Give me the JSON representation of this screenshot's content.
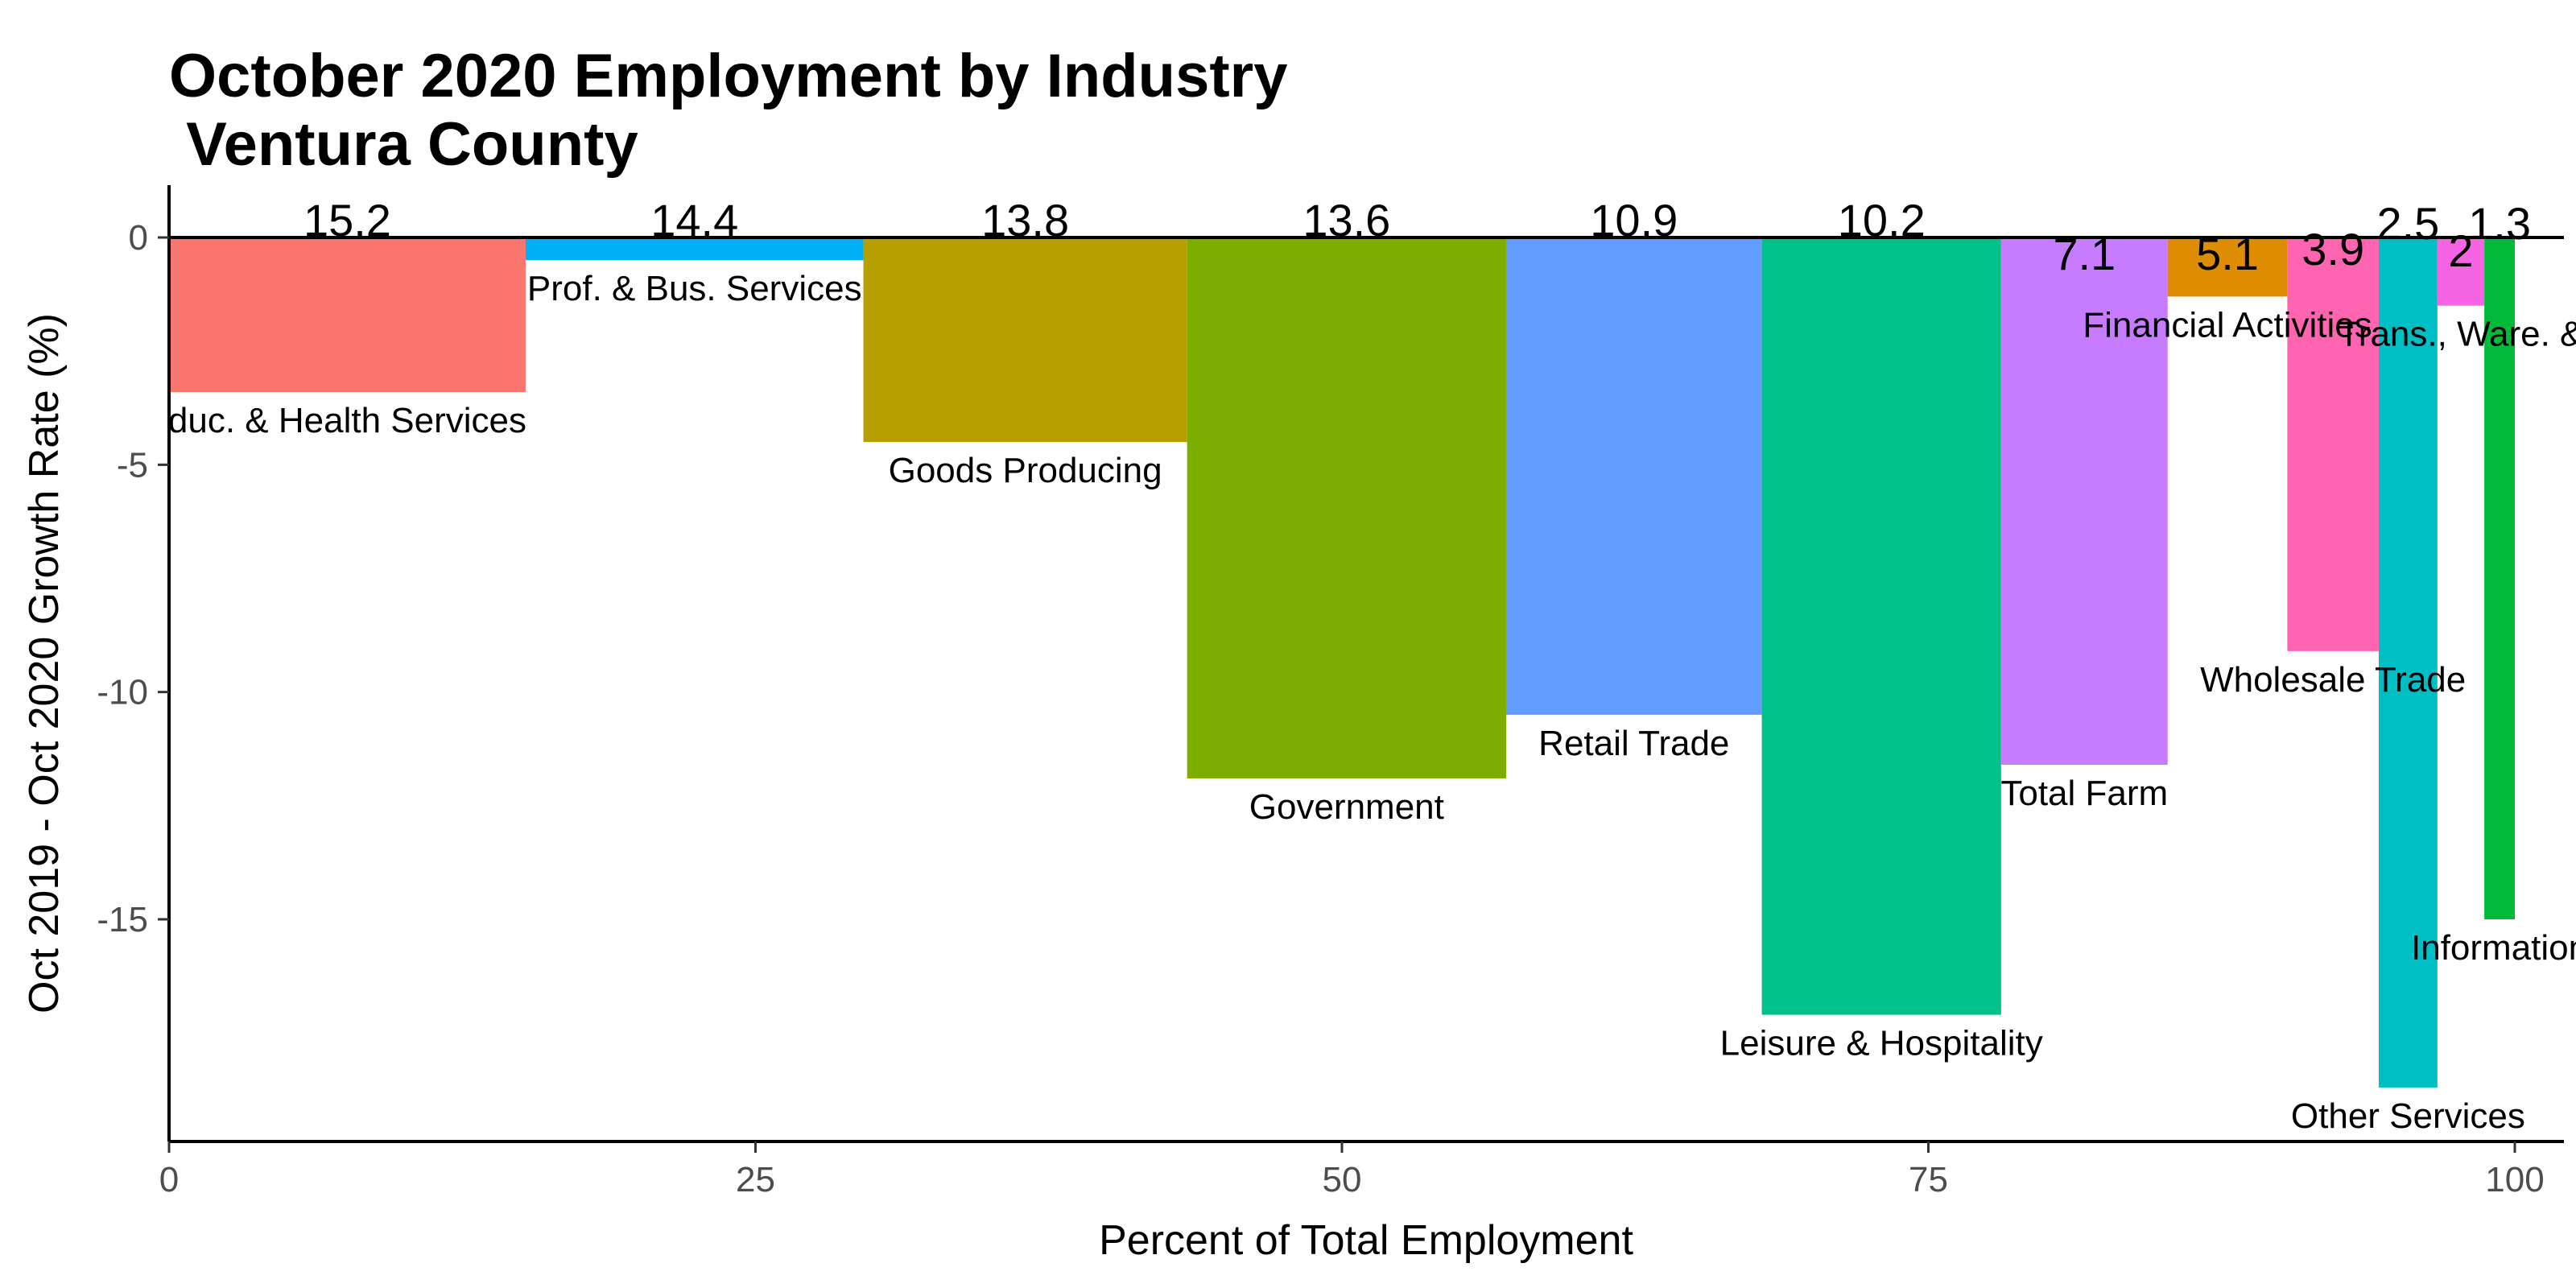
{
  "chart_data": {
    "type": "bar",
    "title_line1": "October 2020 Employment by Industry",
    "title_line2": " Ventura County",
    "xlabel": "Percent of Total Employment",
    "ylabel": "Oct 2019 - Oct 2020 Growth Rate (%)",
    "xlim": [
      0,
      100
    ],
    "ylim": [
      -19.9,
      1.2
    ],
    "x_ticks": [
      "0",
      "25",
      "50",
      "75",
      "100"
    ],
    "y_ticks": [
      "0",
      "-5",
      "-10",
      "-15"
    ],
    "grid": false,
    "legend": "none",
    "bars": [
      {
        "name": "Educ. & Health Services",
        "display_name": "duc. & Health Services",
        "share_label": "15.2",
        "share": 15.2,
        "growth": -3.4,
        "color": "#F8766D"
      },
      {
        "name": "Prof. & Bus. Services",
        "display_name": "Prof. & Bus. Services",
        "share_label": "14.4",
        "share": 14.4,
        "growth": -0.5,
        "color": "#00B0F6"
      },
      {
        "name": "Goods Producing",
        "display_name": "Goods Producing",
        "share_label": "13.8",
        "share": 13.8,
        "growth": -4.5,
        "color": "#B79F00"
      },
      {
        "name": "Government",
        "display_name": "Government",
        "share_label": "13.6",
        "share": 13.6,
        "growth": -11.9,
        "color": "#7CAE00"
      },
      {
        "name": "Retail Trade",
        "display_name": "Retail Trade",
        "share_label": "10.9",
        "share": 10.9,
        "growth": -10.5,
        "color": "#619CFF"
      },
      {
        "name": "Leisure & Hospitality",
        "display_name": "Leisure & Hospitality",
        "share_label": "10.2",
        "share": 10.2,
        "growth": -17.1,
        "color": "#00C08B"
      },
      {
        "name": "Total Farm",
        "display_name": "Total Farm",
        "share_label": "7.1",
        "share": 7.1,
        "growth": -11.6,
        "color": "#C77CFF"
      },
      {
        "name": "Financial Activities",
        "display_name": "Financial Activities",
        "share_label": "5.1",
        "share": 5.1,
        "growth": -1.3,
        "color": "#DE8C00"
      },
      {
        "name": "Wholesale Trade",
        "display_name": "Wholesale Trade",
        "share_label": "3.9",
        "share": 3.9,
        "growth": -9.1,
        "color": "#FF64B0"
      },
      {
        "name": "Other Services",
        "display_name": "Other Services",
        "share_label": "2.5",
        "share": 2.5,
        "growth": -18.7,
        "color": "#00BFC4"
      },
      {
        "name": "Trans., Ware. & Util.",
        "display_name": "Trans., Ware. &",
        "share_label": "2",
        "share": 2.0,
        "growth": -1.5,
        "color": "#F564E3"
      },
      {
        "name": "Information",
        "display_name": "Information",
        "share_label": "1.3",
        "share": 1.3,
        "growth": -15.0,
        "color": "#00BA38"
      }
    ]
  }
}
